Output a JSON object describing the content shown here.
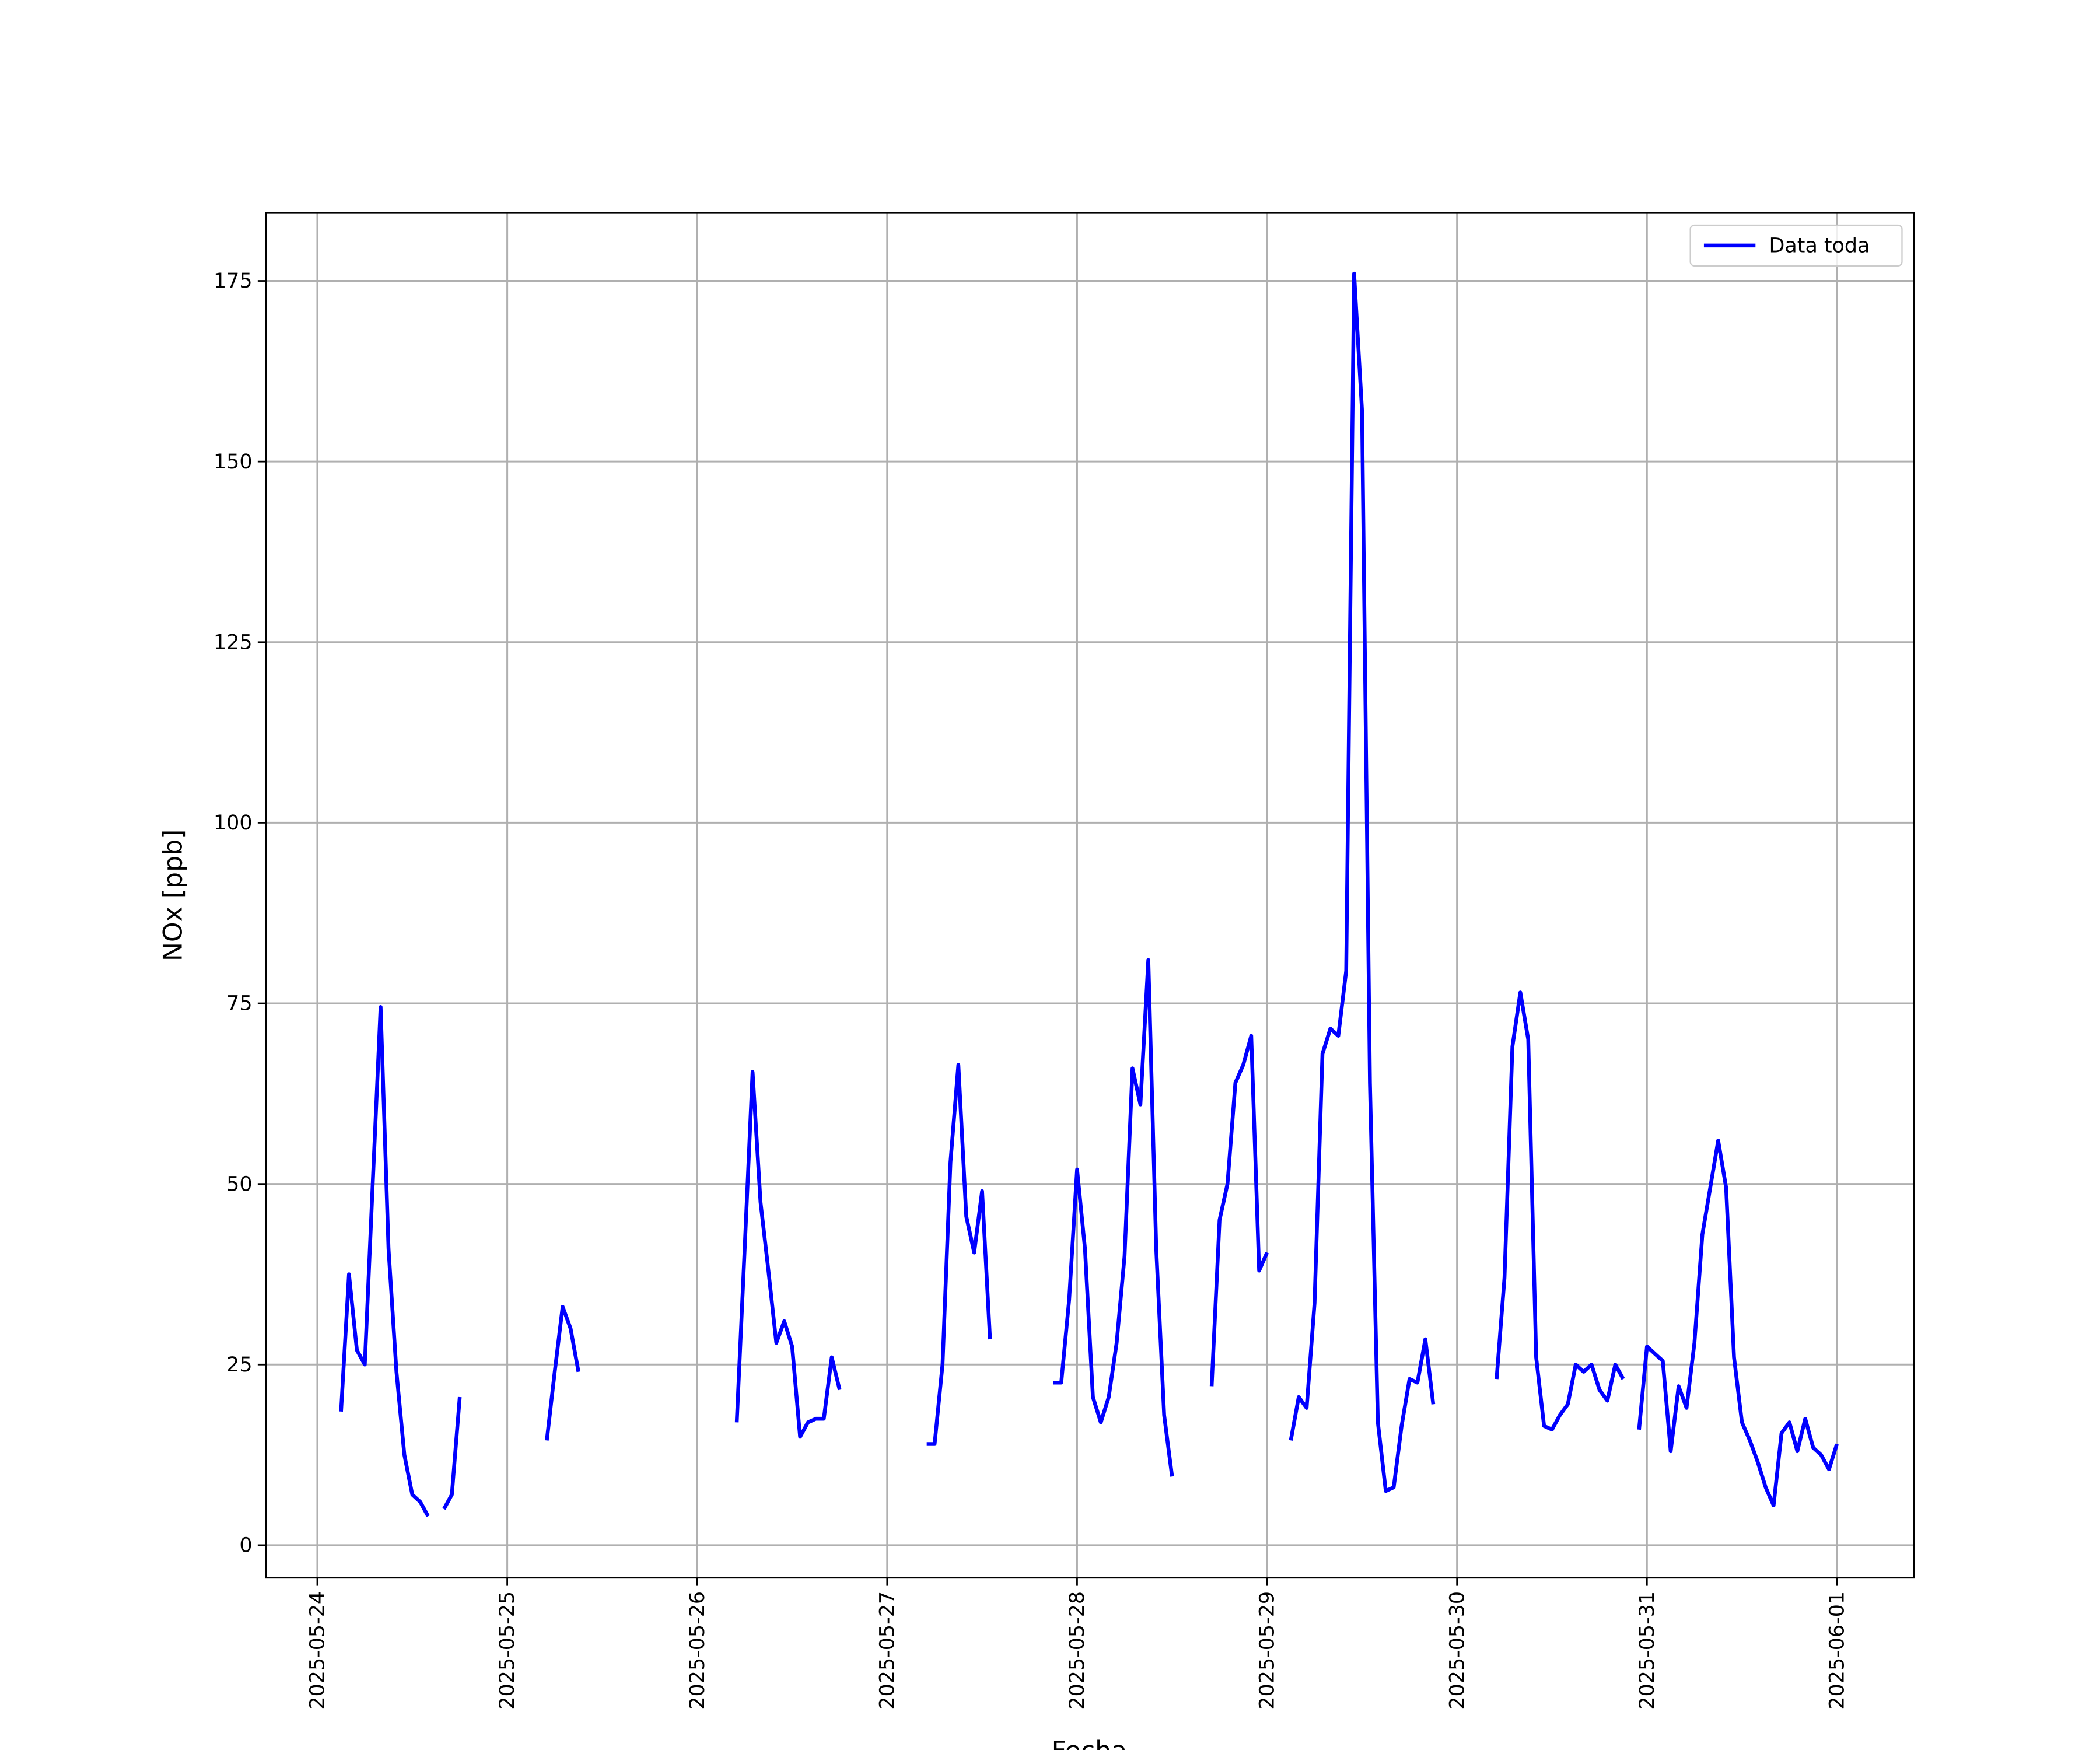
{
  "chart_data": {
    "type": "line",
    "xlabel": "Fecha",
    "ylabel": "NOx [ppb]",
    "x": [
      "2025-05-24T03:00",
      "2025-05-24T04:00",
      "2025-05-24T05:00",
      "2025-05-24T06:00",
      "2025-05-24T07:00",
      "2025-05-24T08:00",
      "2025-05-24T09:00",
      "2025-05-24T10:00",
      "2025-05-24T11:00",
      "2025-05-24T12:00",
      "2025-05-24T13:00",
      "2025-05-24T14:00",
      "2025-05-24T15:00",
      "2025-05-24T16:00",
      "2025-05-24T17:00",
      "2025-05-24T18:00",
      "2025-05-24T19:00",
      "2025-05-25T05:00",
      "2025-05-25T06:00",
      "2025-05-25T07:00",
      "2025-05-25T08:00",
      "2025-05-25T09:00",
      "2025-05-25T10:00",
      "2025-05-26T05:00",
      "2025-05-26T06:00",
      "2025-05-26T07:00",
      "2025-05-26T08:00",
      "2025-05-26T09:00",
      "2025-05-26T10:00",
      "2025-05-26T11:00",
      "2025-05-26T12:00",
      "2025-05-26T13:00",
      "2025-05-26T14:00",
      "2025-05-26T15:00",
      "2025-05-26T16:00",
      "2025-05-26T17:00",
      "2025-05-26T18:00",
      "2025-05-26T19:00",
      "2025-05-27T05:00",
      "2025-05-27T06:00",
      "2025-05-27T07:00",
      "2025-05-27T08:00",
      "2025-05-27T09:00",
      "2025-05-27T10:00",
      "2025-05-27T11:00",
      "2025-05-27T12:00",
      "2025-05-27T13:00",
      "2025-05-27T14:00",
      "2025-05-27T21:00",
      "2025-05-27T22:00",
      "2025-05-27T23:00",
      "2025-05-28T00:00",
      "2025-05-28T01:00",
      "2025-05-28T02:00",
      "2025-05-28T03:00",
      "2025-05-28T04:00",
      "2025-05-28T05:00",
      "2025-05-28T06:00",
      "2025-05-28T07:00",
      "2025-05-28T08:00",
      "2025-05-28T09:00",
      "2025-05-28T10:00",
      "2025-05-28T11:00",
      "2025-05-28T12:00",
      "2025-05-28T13:00",
      "2025-05-28T17:00",
      "2025-05-28T18:00",
      "2025-05-28T19:00",
      "2025-05-28T20:00",
      "2025-05-28T21:00",
      "2025-05-28T22:00",
      "2025-05-28T23:00",
      "2025-05-29T00:00",
      "2025-05-29T01:00",
      "2025-05-29T03:00",
      "2025-05-29T04:00",
      "2025-05-29T05:00",
      "2025-05-29T06:00",
      "2025-05-29T07:00",
      "2025-05-29T08:00",
      "2025-05-29T09:00",
      "2025-05-29T10:00",
      "2025-05-29T11:00",
      "2025-05-29T12:00",
      "2025-05-29T13:00",
      "2025-05-29T14:00",
      "2025-05-29T15:00",
      "2025-05-29T16:00",
      "2025-05-29T17:00",
      "2025-05-29T18:00",
      "2025-05-29T19:00",
      "2025-05-29T20:00",
      "2025-05-29T21:00",
      "2025-05-29T22:00",
      "2025-05-30T05:00",
      "2025-05-30T06:00",
      "2025-05-30T07:00",
      "2025-05-30T08:00",
      "2025-05-30T09:00",
      "2025-05-30T10:00",
      "2025-05-30T11:00",
      "2025-05-30T12:00",
      "2025-05-30T13:00",
      "2025-05-30T14:00",
      "2025-05-30T15:00",
      "2025-05-30T16:00",
      "2025-05-30T17:00",
      "2025-05-30T18:00",
      "2025-05-30T19:00",
      "2025-05-30T20:00",
      "2025-05-30T21:00",
      "2025-05-30T22:00",
      "2025-05-30T23:00",
      "2025-05-31T00:00",
      "2025-05-31T01:00",
      "2025-05-31T02:00",
      "2025-05-31T03:00",
      "2025-05-31T04:00",
      "2025-05-31T05:00",
      "2025-05-31T06:00",
      "2025-05-31T07:00",
      "2025-05-31T08:00",
      "2025-05-31T09:00",
      "2025-05-31T10:00",
      "2025-05-31T11:00",
      "2025-05-31T12:00",
      "2025-05-31T13:00",
      "2025-05-31T14:00",
      "2025-05-31T15:00",
      "2025-05-31T16:00",
      "2025-05-31T17:00",
      "2025-05-31T18:00",
      "2025-05-31T19:00",
      "2025-05-31T20:00",
      "2025-05-31T21:00",
      "2025-05-31T22:00",
      "2025-05-31T23:00",
      "2025-06-01T00:00"
    ],
    "series": [
      {
        "name": "Data toda",
        "color": "#0000ff",
        "values": [
          18.5,
          37.5,
          27,
          25,
          50,
          74.5,
          41,
          24,
          12.5,
          7,
          6,
          4,
          null,
          5,
          7,
          20.5,
          null,
          14.5,
          24,
          33,
          30,
          24,
          null,
          17,
          41,
          65.5,
          47.5,
          38,
          28,
          31,
          27.5,
          15,
          17,
          17.5,
          17.5,
          26,
          21.5,
          null,
          14,
          14,
          25,
          53,
          66.5,
          45.5,
          40.5,
          49,
          28.5,
          null,
          22.5,
          22.5,
          34,
          52,
          41,
          20.5,
          17,
          20.5,
          28,
          40,
          66,
          61,
          81,
          41,
          18,
          9.5,
          null,
          22,
          45,
          50,
          64,
          66.5,
          70.5,
          38,
          40.5,
          null,
          14.5,
          20.5,
          19,
          33.5,
          68,
          71.5,
          70.5,
          79.5,
          176,
          157,
          64,
          17,
          7.5,
          8,
          16.5,
          23,
          22.5,
          28.5,
          19.5,
          null,
          23,
          37,
          69,
          76.5,
          70,
          26,
          16.5,
          16,
          18,
          19.5,
          25,
          24,
          25,
          21.5,
          20,
          25,
          23,
          null,
          16,
          27.5,
          26.5,
          25.5,
          13,
          22,
          19,
          28,
          43,
          49.5,
          56,
          49.5,
          26,
          17,
          14.5,
          11.5,
          8,
          5.5,
          15.5,
          17,
          13,
          17.5,
          13.5,
          12.5,
          10.5,
          14
        ]
      }
    ],
    "xlim": [
      "2025-05-23T17:30",
      "2025-06-01T09:46"
    ],
    "xticks": [
      "2025-05-24",
      "2025-05-25",
      "2025-05-26",
      "2025-05-27",
      "2025-05-28",
      "2025-05-29",
      "2025-05-30",
      "2025-05-31",
      "2025-06-01"
    ],
    "ylim": [
      -4.5,
      184.4
    ],
    "yticks": [
      0,
      25,
      50,
      75,
      100,
      125,
      150,
      175
    ],
    "grid": true,
    "legend_loc": "upper right"
  }
}
